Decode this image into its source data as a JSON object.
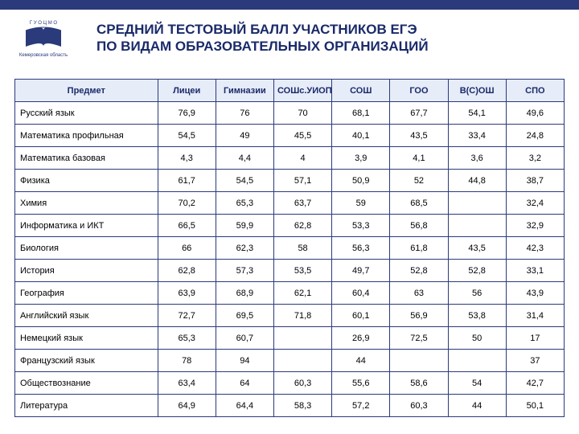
{
  "title_line1": "СРЕДНИЙ ТЕСТОВЫЙ БАЛЛ УЧАСТНИКОВ ЕГЭ",
  "title_line2": "ПО ВИДАМ ОБРАЗОВАТЕЛЬНЫХ ОРГАНИЗАЦИЙ",
  "logo_caption": "Кемеровская область",
  "colors": {
    "topbar": "#2a3a7a",
    "header_bg": "#e6ecf8",
    "border": "#2a3a7a",
    "title_text": "#1a2a6a"
  },
  "table": {
    "columns": [
      "Предмет",
      "Лицеи",
      "Гимназии",
      "СОШс.УИОП",
      "СОШ",
      "ГОО",
      "В(С)ОШ",
      "СПО"
    ],
    "rows": [
      {
        "subject": "Русский язык",
        "cells": [
          "76,9",
          "76",
          "70",
          "68,1",
          "67,7",
          "54,1",
          "49,6"
        ]
      },
      {
        "subject": "Математика профильная",
        "cells": [
          "54,5",
          "49",
          "45,5",
          "40,1",
          "43,5",
          "33,4",
          "24,8"
        ]
      },
      {
        "subject": "Математика базовая",
        "cells": [
          "4,3",
          "4,4",
          "4",
          "3,9",
          "4,1",
          "3,6",
          "3,2"
        ]
      },
      {
        "subject": "Физика",
        "cells": [
          "61,7",
          "54,5",
          "57,1",
          "50,9",
          "52",
          "44,8",
          "38,7"
        ]
      },
      {
        "subject": "Химия",
        "cells": [
          "70,2",
          "65,3",
          "63,7",
          "59",
          "68,5",
          "",
          "32,4"
        ]
      },
      {
        "subject": "Информатика и ИКТ",
        "cells": [
          "66,5",
          "59,9",
          "62,8",
          "53,3",
          "56,8",
          "",
          "32,9"
        ]
      },
      {
        "subject": "Биология",
        "cells": [
          "66",
          "62,3",
          "58",
          "56,3",
          "61,8",
          "43,5",
          "42,3"
        ]
      },
      {
        "subject": "История",
        "cells": [
          "62,8",
          "57,3",
          "53,5",
          "49,7",
          "52,8",
          "52,8",
          "33,1"
        ]
      },
      {
        "subject": "География",
        "cells": [
          "63,9",
          "68,9",
          "62,1",
          "60,4",
          "63",
          "56",
          "43,9"
        ]
      },
      {
        "subject": "Английский язык",
        "cells": [
          "72,7",
          "69,5",
          "71,8",
          "60,1",
          "56,9",
          "53,8",
          "31,4"
        ]
      },
      {
        "subject": "Немецкий язык",
        "cells": [
          "65,3",
          "60,7",
          "",
          "26,9",
          "72,5",
          "50",
          "17"
        ]
      },
      {
        "subject": "Французский язык",
        "cells": [
          "78",
          "94",
          "",
          "44",
          "",
          "",
          "37"
        ]
      },
      {
        "subject": "Обществознание",
        "cells": [
          "63,4",
          "64",
          "60,3",
          "55,6",
          "58,6",
          "54",
          "42,7"
        ]
      },
      {
        "subject": "Литература",
        "cells": [
          "64,9",
          "64,4",
          "58,3",
          "57,2",
          "60,3",
          "44",
          "50,1"
        ]
      }
    ]
  }
}
